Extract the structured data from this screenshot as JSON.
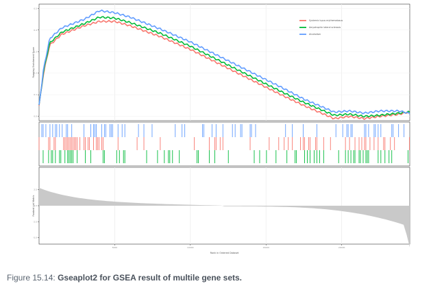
{
  "caption": {
    "prefix": "Figure 15.14:",
    "title": "Gseaplot2 for GSEA result of multile gene sets."
  },
  "chart_data": {
    "type": "line",
    "ylabel_top": "Running Enrichment Score",
    "ylabel_bottom": "Ranked List Metric",
    "xlabel": "Rank in Ordered Dataset",
    "x_ticks": [
      "5000",
      "10000",
      "15000",
      "20000"
    ],
    "y_ticks_top": [
      "0.0",
      "0.1",
      "0.2",
      "0.3",
      "0.4",
      "0.5"
    ],
    "y_ticks_bottom": [
      "-5.0",
      "-2.5",
      "0.0",
      "2.5"
    ],
    "xlim": [
      0,
      24500
    ],
    "ylim_top": [
      -0.02,
      0.52
    ],
    "ylim_bottom": [
      -6,
      6
    ],
    "legend_position": "top-right",
    "series": [
      {
        "name": "Systemic lupus erythematosus",
        "color": "#F8766D",
        "x": [
          0,
          300,
          700,
          1500,
          3000,
          4000,
          5000,
          6000,
          8000,
          10000,
          12000,
          14000,
          16000,
          17500,
          18500,
          19500,
          20500,
          21500,
          22500,
          23800,
          24400
        ],
        "y": [
          0.05,
          0.2,
          0.33,
          0.38,
          0.42,
          0.44,
          0.44,
          0.42,
          0.37,
          0.31,
          0.24,
          0.17,
          0.1,
          0.05,
          0.02,
          -0.01,
          0.0,
          -0.01,
          0.0,
          0.01,
          0.02
        ]
      },
      {
        "name": "Amyotrophic lateral sclerosis",
        "color": "#00BA38",
        "x": [
          0,
          300,
          700,
          1500,
          3000,
          4000,
          5000,
          6000,
          8000,
          10000,
          12000,
          14000,
          16000,
          17500,
          18500,
          19500,
          20500,
          21500,
          22500,
          23800,
          24400
        ],
        "y": [
          0.05,
          0.21,
          0.34,
          0.39,
          0.43,
          0.46,
          0.455,
          0.435,
          0.385,
          0.325,
          0.255,
          0.185,
          0.115,
          0.065,
          0.035,
          0.005,
          0.01,
          0.0,
          0.005,
          0.015,
          0.02
        ]
      },
      {
        "name": "Alcoholism",
        "color": "#619CFF",
        "x": [
          0,
          300,
          700,
          1500,
          3000,
          4000,
          5000,
          6000,
          8000,
          10000,
          12000,
          14000,
          16000,
          17500,
          18500,
          19500,
          20500,
          21500,
          22500,
          23800,
          24400
        ],
        "y": [
          0.05,
          0.22,
          0.36,
          0.41,
          0.45,
          0.49,
          0.48,
          0.46,
          0.405,
          0.345,
          0.275,
          0.205,
          0.135,
          0.08,
          0.05,
          0.02,
          0.025,
          0.015,
          0.025,
          0.025,
          0.015
        ]
      }
    ]
  }
}
